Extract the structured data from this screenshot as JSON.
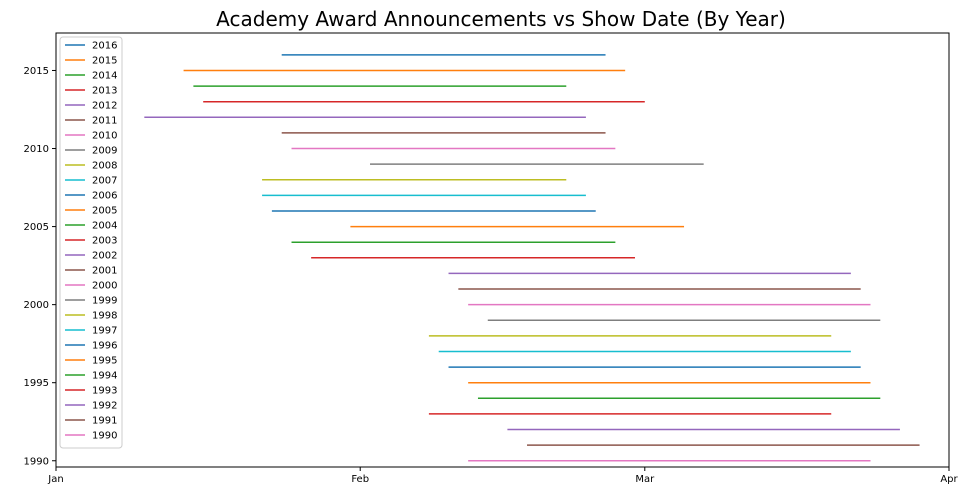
{
  "chart_data": {
    "type": "line",
    "title": "Academy Award Announcements vs Show Date (By Year)",
    "xlabel": "",
    "ylabel": "",
    "x_axis": {
      "kind": "date",
      "range": [
        "2000-01-01",
        "2000-04-01"
      ],
      "ticks": [
        {
          "date": "2000-01-01",
          "label": "Jan"
        },
        {
          "date": "2000-02-01",
          "label": "Feb"
        },
        {
          "date": "2000-03-01",
          "label": "Mar"
        },
        {
          "date": "2000-04-01",
          "label": "Apr"
        }
      ]
    },
    "y_axis": {
      "range": [
        1989.6,
        2017.4
      ],
      "ticks": [
        1990,
        1995,
        2000,
        2005,
        2010,
        2015
      ]
    },
    "legend_position": "upper-left",
    "grid": false,
    "series": [
      {
        "name": "2016",
        "color": "#1f77b4",
        "y": 2016,
        "start": "2000-01-24",
        "end": "2000-02-26"
      },
      {
        "name": "2015",
        "color": "#ff7f0e",
        "y": 2015,
        "start": "2000-01-14",
        "end": "2000-02-28"
      },
      {
        "name": "2014",
        "color": "#2ca02c",
        "y": 2014,
        "start": "2000-01-15",
        "end": "2000-02-22"
      },
      {
        "name": "2013",
        "color": "#d62728",
        "y": 2013,
        "start": "2000-01-16",
        "end": "2000-03-01"
      },
      {
        "name": "2012",
        "color": "#9467bd",
        "y": 2012,
        "start": "2000-01-10",
        "end": "2000-02-24"
      },
      {
        "name": "2011",
        "color": "#8c564b",
        "y": 2011,
        "start": "2000-01-24",
        "end": "2000-02-26"
      },
      {
        "name": "2010",
        "color": "#e377c2",
        "y": 2010,
        "start": "2000-01-25",
        "end": "2000-02-27"
      },
      {
        "name": "2009",
        "color": "#7f7f7f",
        "y": 2009,
        "start": "2000-02-02",
        "end": "2000-03-07"
      },
      {
        "name": "2008",
        "color": "#bcbd22",
        "y": 2008,
        "start": "2000-01-22",
        "end": "2000-02-22"
      },
      {
        "name": "2007",
        "color": "#17becf",
        "y": 2007,
        "start": "2000-01-22",
        "end": "2000-02-24"
      },
      {
        "name": "2006",
        "color": "#1f77b4",
        "y": 2006,
        "start": "2000-01-23",
        "end": "2000-02-25"
      },
      {
        "name": "2005",
        "color": "#ff7f0e",
        "y": 2005,
        "start": "2000-01-31",
        "end": "2000-03-05"
      },
      {
        "name": "2004",
        "color": "#2ca02c",
        "y": 2004,
        "start": "2000-01-25",
        "end": "2000-02-27"
      },
      {
        "name": "2003",
        "color": "#d62728",
        "y": 2003,
        "start": "2000-01-27",
        "end": "2000-02-29"
      },
      {
        "name": "2002",
        "color": "#9467bd",
        "y": 2002,
        "start": "2000-02-10",
        "end": "2000-03-22"
      },
      {
        "name": "2001",
        "color": "#8c564b",
        "y": 2001,
        "start": "2000-02-11",
        "end": "2000-03-23"
      },
      {
        "name": "2000",
        "color": "#e377c2",
        "y": 2000,
        "start": "2000-02-12",
        "end": "2000-03-24"
      },
      {
        "name": "1999",
        "color": "#7f7f7f",
        "y": 1999,
        "start": "2000-02-14",
        "end": "2000-03-25"
      },
      {
        "name": "1998",
        "color": "#bcbd22",
        "y": 1998,
        "start": "2000-02-08",
        "end": "2000-03-20"
      },
      {
        "name": "1997",
        "color": "#17becf",
        "y": 1997,
        "start": "2000-02-09",
        "end": "2000-03-22"
      },
      {
        "name": "1996",
        "color": "#1f77b4",
        "y": 1996,
        "start": "2000-02-10",
        "end": "2000-03-23"
      },
      {
        "name": "1995",
        "color": "#ff7f0e",
        "y": 1995,
        "start": "2000-02-12",
        "end": "2000-03-24"
      },
      {
        "name": "1994",
        "color": "#2ca02c",
        "y": 1994,
        "start": "2000-02-13",
        "end": "2000-03-25"
      },
      {
        "name": "1993",
        "color": "#d62728",
        "y": 1993,
        "start": "2000-02-08",
        "end": "2000-03-20"
      },
      {
        "name": "1992",
        "color": "#9467bd",
        "y": 1992,
        "start": "2000-02-16",
        "end": "2000-03-27"
      },
      {
        "name": "1991",
        "color": "#8c564b",
        "y": 1991,
        "start": "2000-02-18",
        "end": "2000-03-29"
      },
      {
        "name": "1990",
        "color": "#e377c2",
        "y": 1990,
        "start": "2000-02-12",
        "end": "2000-03-24"
      }
    ]
  }
}
